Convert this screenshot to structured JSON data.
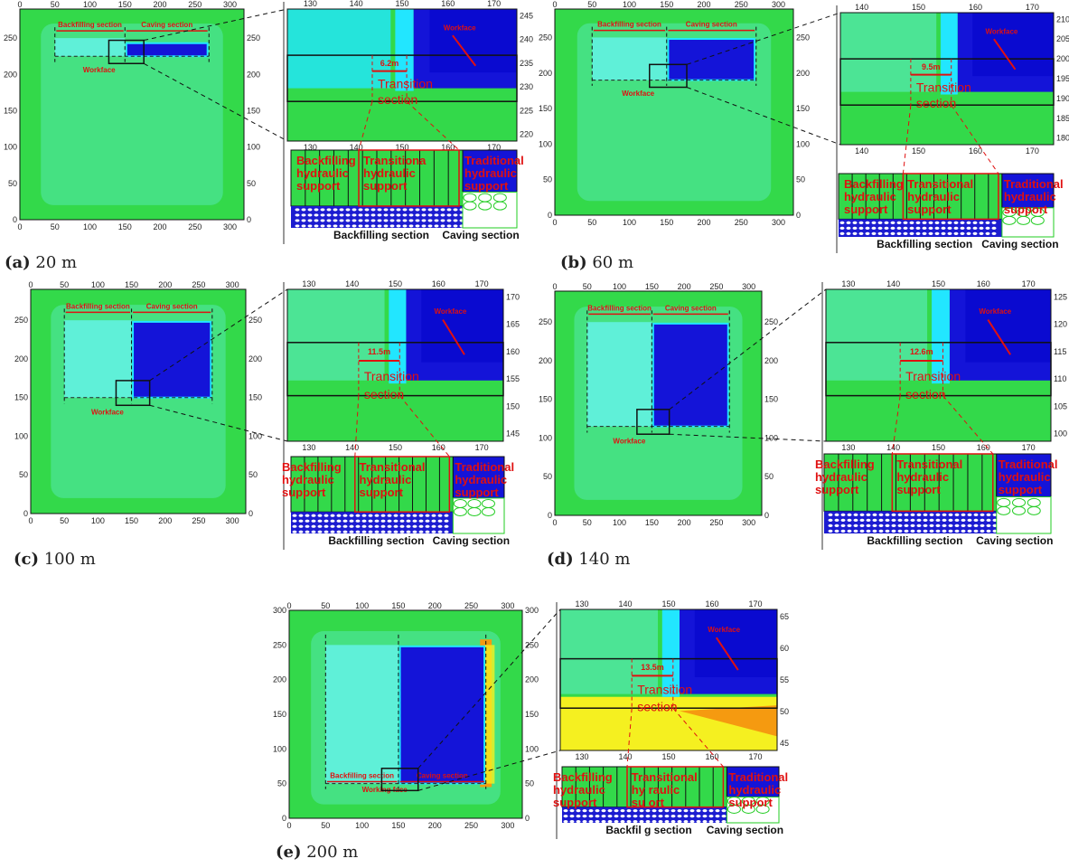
{
  "colors": {
    "background_field": "#33d94a",
    "light_field": "#52e6a8",
    "backfill": "#5ff0d8",
    "cyan": "#22e6ff",
    "caving": "#1414d8",
    "deep_blue": "#0a0ad0",
    "annotation": "#e01010",
    "yellow": "#f5f020",
    "orange": "#f59a10"
  },
  "labels": {
    "backfilling_section": "Backfilling section",
    "caving_section": "Caving section",
    "workface": "Workface",
    "working_face": "Working face",
    "transition_section_1": "Transition",
    "transition_section_2": "section",
    "backfilling_support": [
      "Backfilling",
      "hydraulic",
      "support"
    ],
    "transitional_support": [
      "Transitional",
      "hydraulic",
      "support"
    ],
    "traditional_support": [
      "Traditional",
      "hydraulic",
      "support"
    ]
  },
  "panels": [
    {
      "id": "a",
      "caption_letter": "(a)",
      "caption_value": "20 m",
      "map_xticks": [
        "0",
        "50",
        "100",
        "150",
        "200",
        "250",
        "300"
      ],
      "map_yticks": [
        "0",
        "50",
        "100",
        "150",
        "200",
        "250"
      ],
      "workface_y": 225,
      "inset_xticks": [
        "130",
        "140",
        "150",
        "160",
        "170"
      ],
      "inset_yticks": [
        "220",
        "225",
        "230",
        "235",
        "240",
        "245"
      ],
      "distance": "6.2m",
      "transitional_label": [
        "Transitiona",
        "hydraulic",
        "support"
      ],
      "backfill_bottom": "Backfilling section"
    },
    {
      "id": "b",
      "caption_letter": "(b)",
      "caption_value": "60 m",
      "map_xticks": [
        "0",
        "50",
        "100",
        "150",
        "200",
        "250",
        "300"
      ],
      "map_yticks": [
        "0",
        "50",
        "100",
        "150",
        "200",
        "250"
      ],
      "workface_y": 190,
      "inset_xticks": [
        "140",
        "150",
        "160",
        "170"
      ],
      "inset_yticks": [
        "180",
        "185",
        "190",
        "195",
        "200",
        "205",
        "210"
      ],
      "distance": "9.5m",
      "transitional_label": [
        "Transitional",
        "hydraulic",
        "support"
      ],
      "backfill_bottom": "Backfilling section"
    },
    {
      "id": "c",
      "caption_letter": "(c)",
      "caption_value": "100 m",
      "map_xticks": [
        "0",
        "50",
        "100",
        "150",
        "200",
        "250",
        "300"
      ],
      "map_yticks": [
        "0",
        "50",
        "100",
        "150",
        "200",
        "250"
      ],
      "workface_y": 150,
      "inset_xticks": [
        "130",
        "140",
        "150",
        "160",
        "170"
      ],
      "inset_yticks": [
        "145",
        "150",
        "155",
        "160",
        "165",
        "170"
      ],
      "distance": "11.5m",
      "transitional_label": [
        "Transitional",
        "hydraulic",
        "support"
      ],
      "backfill_bottom": "Backfilling section"
    },
    {
      "id": "d",
      "caption_letter": "(d)",
      "caption_value": "140 m",
      "map_xticks": [
        "0",
        "50",
        "100",
        "150",
        "200",
        "250",
        "300"
      ],
      "map_yticks": [
        "0",
        "50",
        "100",
        "150",
        "200",
        "250"
      ],
      "workface_y": 115,
      "inset_xticks": [
        "130",
        "140",
        "150",
        "160",
        "170"
      ],
      "inset_yticks": [
        "100",
        "105",
        "110",
        "115",
        "120",
        "125"
      ],
      "distance": "12.6m",
      "transitional_label": [
        "Transitional",
        "hydraulic",
        "support"
      ],
      "backfill_bottom": "Backfilling section"
    },
    {
      "id": "e",
      "caption_letter": "(e)",
      "caption_value": "200 m",
      "map_xticks": [
        "0",
        "50",
        "100",
        "150",
        "200",
        "250",
        "300"
      ],
      "map_yticks": [
        "0",
        "50",
        "100",
        "150",
        "200",
        "250",
        "300"
      ],
      "workface_y": 50,
      "inset_xticks": [
        "130",
        "140",
        "150",
        "160",
        "170"
      ],
      "inset_yticks": [
        "45",
        "50",
        "55",
        "60",
        "65"
      ],
      "distance": "13.5m",
      "transitional_label": [
        "Transitional",
        "hy    raulic",
        "su    ort"
      ],
      "backfill_bottom": "Backfil    g section"
    }
  ]
}
